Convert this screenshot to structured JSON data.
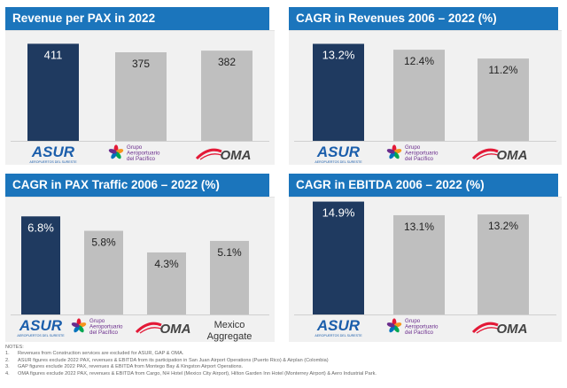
{
  "brand_colors": {
    "header": "#1b75bc",
    "asur": "#1f3a60",
    "peer": "#bfbfbf",
    "oma_red": "#e31937",
    "gap_purple": "#6a2c8c"
  },
  "logos": {
    "asur": {
      "name": "ASUR",
      "tagline": "AEROPUERTOS DEL SURESTE"
    },
    "gap": {
      "line1": "Grupo",
      "line2": "Aeroportuario",
      "line3": "del Pacífico"
    },
    "oma": {
      "name": "OMA"
    }
  },
  "chart_data": [
    {
      "type": "bar",
      "title": "Revenue per PAX in 2022",
      "categories": [
        "ASUR",
        "Grupo Aeroportuario del Pacífico",
        "OMA"
      ],
      "values": [
        411,
        375,
        382
      ],
      "value_labels": [
        "411",
        "375",
        "382"
      ],
      "ylim": [
        0,
        420
      ]
    },
    {
      "type": "bar",
      "title": "CAGR in Revenues 2006 – 2022 (%)",
      "categories": [
        "ASUR",
        "Grupo Aeroportuario del Pacífico",
        "OMA"
      ],
      "values": [
        13.2,
        12.4,
        11.2
      ],
      "value_labels": [
        "13.2%",
        "12.4%",
        "11.2%"
      ],
      "ylim": [
        0,
        13.5
      ]
    },
    {
      "type": "bar",
      "title": "CAGR in PAX Traffic 2006 – 2022 (%)",
      "categories": [
        "ASUR",
        "Grupo Aeroportuario del Pacífico",
        "OMA",
        "Mexico Aggregate"
      ],
      "values": [
        6.8,
        5.8,
        4.3,
        5.1
      ],
      "value_labels": [
        "6.8%",
        "5.8%",
        "4.3%",
        "5.1%"
      ],
      "ylim": [
        0,
        7.0
      ]
    },
    {
      "type": "bar",
      "title": "CAGR in EBITDA 2006 – 2022 (%)",
      "categories": [
        "ASUR",
        "Grupo Aeroportuario del Pacífico",
        "OMA"
      ],
      "values": [
        14.9,
        13.1,
        13.2
      ],
      "value_labels": [
        "14.9%",
        "13.1%",
        "13.2%"
      ],
      "ylim": [
        0,
        15.2
      ]
    }
  ],
  "notes": {
    "heading": "NOTES:",
    "items": [
      {
        "num": "1.",
        "text": "Revenues from Construction services are excluded for ASUR, GAP & OMA."
      },
      {
        "num": "2.",
        "text": "ASUR figures exclude 2022 PAX, revenues & EBITDA from its participation in San Juan Airport Operations (Puerto Rico) & Airplan (Colombia)"
      },
      {
        "num": "3.",
        "text": "GAP figures exclude 2022 PAX, revenues & EBITDA from Montego Bay & Kingston Airport Operations."
      },
      {
        "num": "4.",
        "text": "OMA figures exclude 2022 PAX, revenues & EBITDA from Cargo, NH Hotel (Mexico City Airport), Hilton Garden Inn Hotel (Monterrey Airport) & Aero Industrial Park."
      }
    ]
  }
}
